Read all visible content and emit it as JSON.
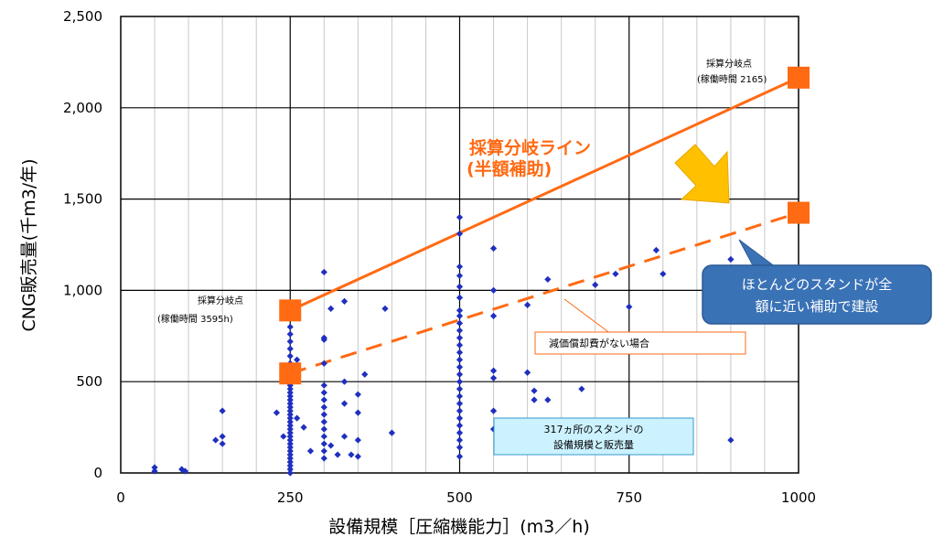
{
  "chart_data": {
    "type": "scatter",
    "xlabel": "設備規模［圧縮機能力］(m3／h)",
    "ylabel": "CNG販売量(千m3/年)",
    "xlim": [
      0,
      1000
    ],
    "ylim": [
      0,
      2500
    ],
    "xticks": [
      0,
      250,
      500,
      750,
      1000
    ],
    "xtick_labels": [
      "0",
      "250",
      "500",
      "750",
      "1000"
    ],
    "yticks": [
      0,
      500,
      1000,
      1500,
      2000,
      2500
    ],
    "ytick_labels": [
      "0",
      "500",
      "1,000",
      "1,500",
      "2,000",
      "2,500"
    ],
    "grid": true,
    "points_color": "#1f2fbf",
    "points": [
      [
        50,
        30
      ],
      [
        50,
        10
      ],
      [
        90,
        20
      ],
      [
        95,
        10
      ],
      [
        140,
        180
      ],
      [
        150,
        200
      ],
      [
        150,
        340
      ],
      [
        150,
        160
      ],
      [
        230,
        330
      ],
      [
        240,
        200
      ],
      [
        250,
        0
      ],
      [
        250,
        20
      ],
      [
        250,
        40
      ],
      [
        250,
        60
      ],
      [
        250,
        80
      ],
      [
        250,
        100
      ],
      [
        250,
        120
      ],
      [
        250,
        140
      ],
      [
        250,
        160
      ],
      [
        250,
        180
      ],
      [
        250,
        200
      ],
      [
        250,
        220
      ],
      [
        250,
        240
      ],
      [
        250,
        260
      ],
      [
        250,
        280
      ],
      [
        250,
        300
      ],
      [
        250,
        320
      ],
      [
        250,
        340
      ],
      [
        250,
        360
      ],
      [
        250,
        380
      ],
      [
        250,
        400
      ],
      [
        250,
        420
      ],
      [
        250,
        440
      ],
      [
        250,
        460
      ],
      [
        250,
        480
      ],
      [
        250,
        500
      ],
      [
        250,
        520
      ],
      [
        250,
        560
      ],
      [
        250,
        600
      ],
      [
        250,
        640
      ],
      [
        250,
        680
      ],
      [
        250,
        720
      ],
      [
        250,
        760
      ],
      [
        250,
        800
      ],
      [
        260,
        620
      ],
      [
        260,
        300
      ],
      [
        270,
        250
      ],
      [
        280,
        120
      ],
      [
        300,
        1100
      ],
      [
        300,
        740
      ],
      [
        300,
        730
      ],
      [
        300,
        600
      ],
      [
        300,
        480
      ],
      [
        300,
        440
      ],
      [
        300,
        400
      ],
      [
        300,
        360
      ],
      [
        300,
        320
      ],
      [
        300,
        280
      ],
      [
        300,
        240
      ],
      [
        300,
        200
      ],
      [
        300,
        160
      ],
      [
        300,
        120
      ],
      [
        300,
        80
      ],
      [
        310,
        900
      ],
      [
        310,
        150
      ],
      [
        320,
        100
      ],
      [
        330,
        940
      ],
      [
        330,
        500
      ],
      [
        330,
        380
      ],
      [
        330,
        200
      ],
      [
        340,
        100
      ],
      [
        350,
        430
      ],
      [
        350,
        330
      ],
      [
        350,
        180
      ],
      [
        350,
        90
      ],
      [
        360,
        540
      ],
      [
        390,
        900
      ],
      [
        400,
        220
      ],
      [
        500,
        1400
      ],
      [
        500,
        1310
      ],
      [
        500,
        1130
      ],
      [
        500,
        1080
      ],
      [
        500,
        1020
      ],
      [
        500,
        960
      ],
      [
        500,
        890
      ],
      [
        500,
        860
      ],
      [
        500,
        820
      ],
      [
        500,
        780
      ],
      [
        500,
        740
      ],
      [
        500,
        700
      ],
      [
        500,
        660
      ],
      [
        500,
        620
      ],
      [
        500,
        580
      ],
      [
        500,
        540
      ],
      [
        500,
        500
      ],
      [
        500,
        460
      ],
      [
        500,
        420
      ],
      [
        500,
        380
      ],
      [
        500,
        340
      ],
      [
        500,
        300
      ],
      [
        500,
        260
      ],
      [
        500,
        220
      ],
      [
        500,
        180
      ],
      [
        500,
        140
      ],
      [
        500,
        90
      ],
      [
        550,
        1230
      ],
      [
        550,
        1000
      ],
      [
        550,
        860
      ],
      [
        550,
        560
      ],
      [
        550,
        520
      ],
      [
        550,
        340
      ],
      [
        550,
        240
      ],
      [
        600,
        920
      ],
      [
        600,
        550
      ],
      [
        610,
        450
      ],
      [
        610,
        400
      ],
      [
        630,
        400
      ],
      [
        630,
        1060
      ],
      [
        680,
        460
      ],
      [
        700,
        1030
      ],
      [
        730,
        1090
      ],
      [
        750,
        910
      ],
      [
        790,
        1220
      ],
      [
        800,
        1090
      ],
      [
        900,
        1170
      ],
      [
        900,
        180
      ]
    ],
    "breakeven_line": {
      "label_line1": "採算分岐ライン",
      "label_line2": "(半額補助)",
      "color": "#ff6a13",
      "x": [
        250,
        1000
      ],
      "y": [
        890,
        2165
      ]
    },
    "no_depreciation_line": {
      "label": "減価償却費がない場合",
      "color": "#ff6a13",
      "x": [
        250,
        1000
      ],
      "y": [
        545,
        1425
      ]
    },
    "annotations": {
      "left_point_title": "採算分岐点",
      "left_point_sub": "(稼働時間 3595h)",
      "right_point_title": "採算分岐点",
      "right_point_sub": "(稼働時間 2165)",
      "info_box": [
        "317ヵ所のスタンドの",
        "設備規模と販売量"
      ],
      "callout": [
        "ほとんどのスタンドが全",
        "額に近い補助で建設"
      ]
    }
  }
}
